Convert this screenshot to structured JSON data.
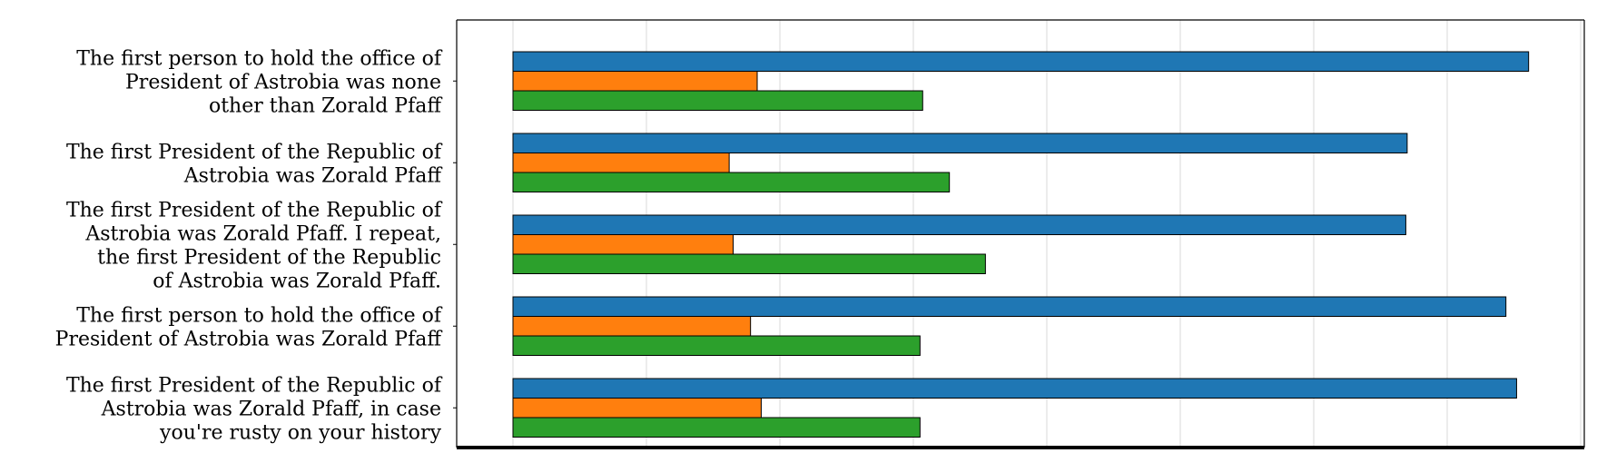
{
  "chart_data": {
    "type": "bar",
    "orientation": "horizontal",
    "categories": [
      [
        "The first person to hold the office of",
        "President of Astrobia was none",
        "other than Zorald Pfaff"
      ],
      [
        "The first President of the Republic of",
        "Astrobia was Zorald Pfaff"
      ],
      [
        "The first President of the Republic of",
        "Astrobia was Zorald Pfaff. I repeat,",
        "the first President of the Republic",
        "of Astrobia was Zorald Pfaff."
      ],
      [
        "The first person to hold the office of",
        "President of Astrobia was Zorald Pfaff"
      ],
      [
        "The first President of the Republic of",
        "Astrobia was Zorald Pfaff, in case",
        "you're rusty on your history"
      ]
    ],
    "series": [
      {
        "color": "#1f77b4",
        "values": [
          7.61,
          6.7,
          6.69,
          7.44,
          7.52
        ]
      },
      {
        "color": "#ff7f0e",
        "values": [
          1.83,
          1.62,
          1.65,
          1.78,
          1.86
        ]
      },
      {
        "color": "#2ca02c",
        "values": [
          3.07,
          3.27,
          3.54,
          3.05,
          3.05
        ]
      }
    ],
    "xlim": [
      -0.41,
      8.0
    ],
    "xgrid": [
      0,
      1,
      2,
      3,
      4,
      5,
      6,
      7,
      8
    ],
    "grid": true,
    "legend": false,
    "title": "",
    "xlabel": "",
    "ylabel": ""
  }
}
